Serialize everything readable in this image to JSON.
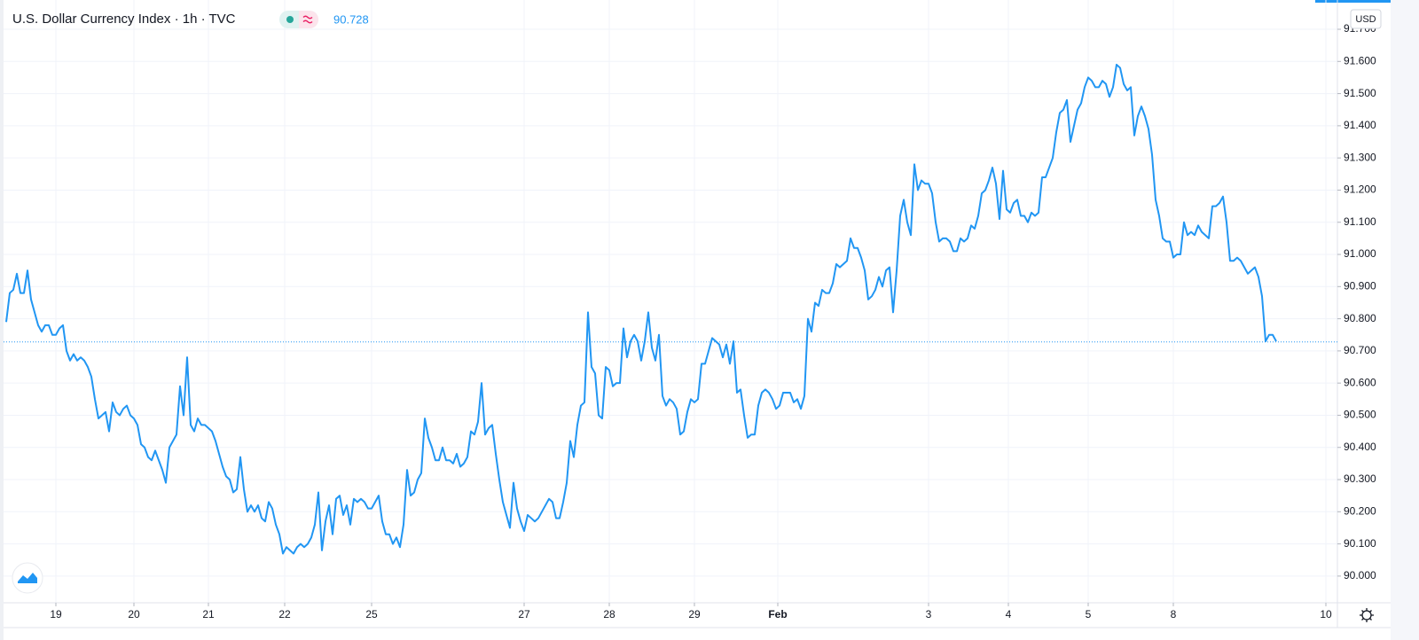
{
  "chart_data": {
    "type": "line",
    "title": "U.S. Dollar Currency Index · 1h · TVC",
    "currency": "USD",
    "last_price": 90.728,
    "color": "#2196f3",
    "grid": true,
    "x": [
      0,
      1,
      2,
      3,
      4,
      5,
      6,
      7,
      8,
      9,
      10,
      11,
      12,
      13,
      14,
      15,
      16,
      17,
      18,
      19,
      20,
      21,
      22,
      23,
      24,
      25,
      26,
      27,
      28,
      29,
      30,
      31,
      32,
      33,
      34,
      35,
      36,
      37,
      38,
      39,
      40,
      41,
      42,
      43,
      44,
      45,
      46,
      47,
      48,
      49,
      50,
      51,
      52,
      53,
      54,
      55,
      56,
      57,
      58,
      59,
      60,
      61,
      62,
      63,
      64,
      65,
      66,
      67,
      68,
      69,
      70,
      71,
      72,
      73,
      74,
      75,
      76,
      77,
      78,
      79,
      80,
      81,
      82,
      83,
      84,
      85,
      86,
      87,
      88,
      89,
      90,
      91,
      92,
      93,
      94,
      95,
      96,
      97,
      98,
      99,
      100,
      101,
      102,
      103,
      104,
      105,
      106,
      107,
      108,
      109,
      110,
      111,
      112,
      113,
      114,
      115,
      116,
      117,
      118,
      119,
      120,
      121,
      122,
      123,
      124,
      125,
      126,
      127,
      128,
      129,
      130,
      131,
      132,
      133,
      134,
      135,
      136,
      137,
      138,
      139,
      140,
      141,
      142,
      143,
      144,
      145,
      146,
      147,
      148,
      149,
      150,
      151,
      152,
      153,
      154,
      155,
      156,
      157,
      158,
      159,
      160,
      161,
      162,
      163,
      164,
      165,
      166,
      167,
      168,
      169,
      170,
      171,
      172,
      173,
      174,
      175,
      176,
      177,
      178,
      179,
      180,
      181,
      182,
      183,
      184,
      185,
      186,
      187,
      188,
      189,
      190,
      191,
      192,
      193,
      194,
      195,
      196,
      197,
      198,
      199,
      200,
      201,
      202,
      203,
      204,
      205,
      206,
      207,
      208,
      209,
      210,
      211,
      212,
      213,
      214,
      215,
      216,
      217,
      218,
      219,
      220,
      221,
      222,
      223,
      224,
      225,
      226,
      227,
      228,
      229,
      230,
      231,
      232,
      233,
      234,
      235,
      236,
      237,
      238,
      239,
      240,
      241,
      242,
      243,
      244,
      245,
      246,
      247,
      248,
      249,
      250,
      251,
      252,
      253,
      254,
      255,
      256,
      257,
      258,
      259,
      260,
      261,
      262,
      263,
      264,
      265,
      266,
      267,
      268,
      269,
      270,
      271,
      272,
      273,
      274,
      275,
      276,
      277,
      278,
      279,
      280,
      281,
      282,
      283,
      284,
      285,
      286,
      287,
      288,
      289,
      290,
      291,
      292,
      293,
      294,
      295,
      296,
      297,
      298,
      299,
      300,
      301,
      302,
      303,
      304,
      305,
      306,
      307,
      308,
      309,
      310,
      311,
      312,
      313,
      314,
      315,
      316,
      317,
      318,
      319,
      320,
      321,
      322,
      323,
      324,
      325,
      326,
      327,
      328,
      329,
      330,
      331,
      332,
      333,
      334,
      335,
      336,
      337,
      338,
      339,
      340,
      341,
      342,
      343,
      344,
      345,
      346,
      347,
      348,
      349,
      350,
      351,
      352,
      353,
      354,
      355,
      356,
      357,
      358
    ],
    "values": [
      90.79,
      90.88,
      90.89,
      90.94,
      90.88,
      90.88,
      90.95,
      90.86,
      90.82,
      90.78,
      90.76,
      90.78,
      90.78,
      90.75,
      90.75,
      90.77,
      90.78,
      90.7,
      90.67,
      90.69,
      90.67,
      90.68,
      90.67,
      90.65,
      90.62,
      90.55,
      90.49,
      90.5,
      90.51,
      90.45,
      90.54,
      90.51,
      90.5,
      90.52,
      90.53,
      90.5,
      90.49,
      90.47,
      90.41,
      90.4,
      90.37,
      90.36,
      90.39,
      90.36,
      90.33,
      90.29,
      90.4,
      90.42,
      90.44,
      90.59,
      90.5,
      90.68,
      90.47,
      90.45,
      90.49,
      90.47,
      90.47,
      90.46,
      90.45,
      90.42,
      90.38,
      90.34,
      90.31,
      90.3,
      90.26,
      90.27,
      90.37,
      90.27,
      90.2,
      90.22,
      90.2,
      90.22,
      90.18,
      90.17,
      90.23,
      90.21,
      90.16,
      90.13,
      90.07,
      90.09,
      90.08,
      90.07,
      90.09,
      90.1,
      90.09,
      90.1,
      90.12,
      90.16,
      90.26,
      90.08,
      90.17,
      90.22,
      90.13,
      90.24,
      90.25,
      90.19,
      90.22,
      90.16,
      90.24,
      90.23,
      90.24,
      90.23,
      90.21,
      90.21,
      90.23,
      90.25,
      90.17,
      90.13,
      90.13,
      90.1,
      90.12,
      90.09,
      90.16,
      90.33,
      90.25,
      90.26,
      90.3,
      90.32,
      90.49,
      90.43,
      90.4,
      90.36,
      90.36,
      90.4,
      90.36,
      90.36,
      90.35,
      90.38,
      90.34,
      90.35,
      90.37,
      90.45,
      90.44,
      90.48,
      90.6,
      90.44,
      90.46,
      90.47,
      90.38,
      90.3,
      90.23,
      90.19,
      90.15,
      90.29,
      90.21,
      90.17,
      90.14,
      90.19,
      90.18,
      90.17,
      90.18,
      90.2,
      90.22,
      90.24,
      90.23,
      90.18,
      90.18,
      90.23,
      90.29,
      90.42,
      90.37,
      90.47,
      90.53,
      90.54,
      90.82,
      90.65,
      90.63,
      90.5,
      90.49,
      90.65,
      90.64,
      90.59,
      90.6,
      90.6,
      90.77,
      90.68,
      90.73,
      90.75,
      90.73,
      90.67,
      90.73,
      90.82,
      90.71,
      90.67,
      90.75,
      90.56,
      90.53,
      90.55,
      90.54,
      90.52,
      90.44,
      90.45,
      90.51,
      90.55,
      90.54,
      90.55,
      90.66,
      90.66,
      90.7,
      90.74,
      90.73,
      90.72,
      90.68,
      90.72,
      90.66,
      90.73,
      90.57,
      90.58,
      90.5,
      90.43,
      90.44,
      90.44,
      90.53,
      90.57,
      90.58,
      90.57,
      90.55,
      90.52,
      90.53,
      90.57,
      90.57,
      90.57,
      90.54,
      90.55,
      90.52,
      90.56,
      90.8,
      90.76,
      90.85,
      90.84,
      90.89,
      90.88,
      90.88,
      90.91,
      90.97,
      90.96,
      90.97,
      90.98,
      91.05,
      91.02,
      91.02,
      90.99,
      90.95,
      90.86,
      90.87,
      90.89,
      90.93,
      90.9,
      90.95,
      90.96,
      90.82,
      90.95,
      91.12,
      91.17,
      91.1,
      91.06,
      91.28,
      91.2,
      91.23,
      91.22,
      91.22,
      91.19,
      91.1,
      91.04,
      91.05,
      91.05,
      91.04,
      91.01,
      91.01,
      91.05,
      91.04,
      91.05,
      91.09,
      91.08,
      91.12,
      91.19,
      91.2,
      91.23,
      91.27,
      91.22,
      91.11,
      91.26,
      91.14,
      91.13,
      91.16,
      91.17,
      91.12,
      91.12,
      91.1,
      91.13,
      91.12,
      91.13,
      91.24,
      91.24,
      91.27,
      91.3,
      91.38,
      91.44,
      91.45,
      91.48,
      91.35,
      91.4,
      91.45,
      91.47,
      91.52,
      91.55,
      91.54,
      91.52,
      91.52,
      91.54,
      91.53,
      91.49,
      91.52,
      91.59,
      91.58,
      91.53,
      91.51,
      91.52,
      91.37,
      91.43,
      91.46,
      91.43,
      91.39,
      91.31,
      91.17,
      91.12,
      91.05,
      91.04,
      91.04,
      90.99,
      91.0,
      91.0,
      91.1,
      91.06,
      91.07,
      91.06,
      91.09,
      91.07,
      91.06,
      91.05,
      91.15,
      91.15,
      91.16,
      91.18,
      91.1,
      90.98,
      90.98,
      90.99,
      90.98,
      90.96,
      90.94,
      90.95,
      90.96,
      90.93,
      90.87,
      90.73,
      90.75,
      90.75,
      90.73
    ],
    "xlim": [
      -1.75,
      375.25
    ],
    "xticks": [
      {
        "value": 14,
        "label": "19"
      },
      {
        "value": 36,
        "label": "20"
      },
      {
        "value": 57,
        "label": "21"
      },
      {
        "value": 78.5,
        "label": "22"
      },
      {
        "value": 103,
        "label": "25"
      },
      {
        "value": 146,
        "label": "27"
      },
      {
        "value": 170,
        "label": "28"
      },
      {
        "value": 194,
        "label": "29"
      },
      {
        "value": 217.5,
        "label": "Feb"
      },
      {
        "value": 260,
        "label": "3"
      },
      {
        "value": 282.5,
        "label": "4"
      },
      {
        "value": 305,
        "label": "5"
      },
      {
        "value": 329,
        "label": "8"
      },
      {
        "value": 372,
        "label": "10"
      }
    ],
    "ylim": [
      89.917,
      91.791
    ],
    "yticks": [
      {
        "value": 90.0,
        "label": "90.000"
      },
      {
        "value": 90.1,
        "label": "90.100"
      },
      {
        "value": 90.2,
        "label": "90.200"
      },
      {
        "value": 90.3,
        "label": "90.300"
      },
      {
        "value": 90.4,
        "label": "90.400"
      },
      {
        "value": 90.5,
        "label": "90.500"
      },
      {
        "value": 90.6,
        "label": "90.600"
      },
      {
        "value": 90.7,
        "label": "90.700"
      },
      {
        "value": 90.8,
        "label": "90.800"
      },
      {
        "value": 90.9,
        "label": "90.900"
      },
      {
        "value": 91.0,
        "label": "91.000"
      },
      {
        "value": 91.1,
        "label": "91.100"
      },
      {
        "value": 91.2,
        "label": "91.200"
      },
      {
        "value": 91.3,
        "label": "91.300"
      },
      {
        "value": 91.4,
        "label": "91.400"
      },
      {
        "value": 91.5,
        "label": "91.500"
      },
      {
        "value": 91.6,
        "label": "91.600"
      },
      {
        "value": 91.7,
        "label": "91.700"
      }
    ]
  }
}
